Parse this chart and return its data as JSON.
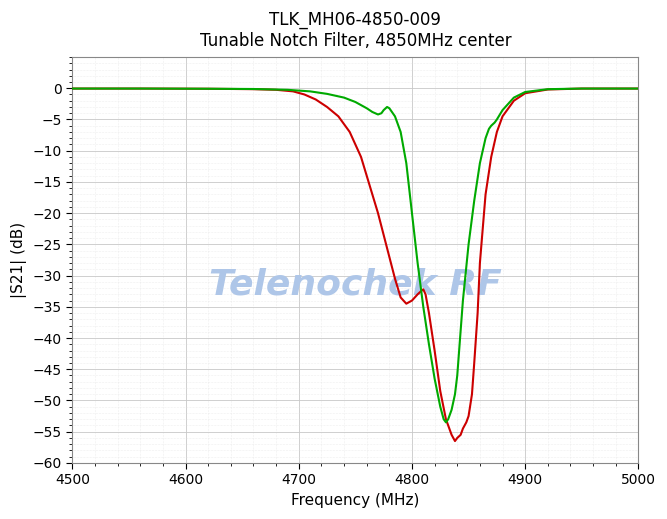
{
  "title_line1": "TLK_MH06-4850-009",
  "title_line2": "Tunable Notch Filter, 4850MHz center",
  "xlabel": "Frequency (MHz)",
  "ylabel": "|S21| (dB)",
  "xlim": [
    4500,
    5000
  ],
  "ylim": [
    -60,
    5
  ],
  "yticks": [
    0,
    -5,
    -10,
    -15,
    -20,
    -25,
    -30,
    -35,
    -40,
    -45,
    -50,
    -55,
    -60
  ],
  "xticks": [
    4500,
    4600,
    4700,
    4800,
    4900,
    5000
  ],
  "watermark": "Telenochek RF",
  "watermark_color": "#aec6e8",
  "bg_color": "#ffffff",
  "grid_color": "#c8c8c8",
  "grid_minor_color": "#e0e0e0",
  "red_color": "#cc0000",
  "green_color": "#00aa00",
  "red_x": [
    4500,
    4560,
    4620,
    4660,
    4680,
    4695,
    4705,
    4715,
    4725,
    4735,
    4745,
    4755,
    4760,
    4765,
    4770,
    4775,
    4780,
    4785,
    4790,
    4795,
    4800,
    4805,
    4808,
    4810,
    4812,
    4815,
    4820,
    4825,
    4830,
    4835,
    4838,
    4840,
    4843,
    4845,
    4848,
    4850,
    4853,
    4855,
    4858,
    4860,
    4865,
    4870,
    4875,
    4880,
    4890,
    4900,
    4920,
    4950,
    5000
  ],
  "red_y": [
    -0.05,
    -0.05,
    -0.08,
    -0.15,
    -0.25,
    -0.5,
    -1.0,
    -1.8,
    -3.0,
    -4.5,
    -7.0,
    -11.0,
    -14.0,
    -17.0,
    -20.0,
    -23.5,
    -27.0,
    -30.5,
    -33.5,
    -34.5,
    -34.0,
    -33.0,
    -32.5,
    -32.2,
    -33.0,
    -36.0,
    -42.0,
    -48.5,
    -53.0,
    -55.5,
    -56.5,
    -56.0,
    -55.5,
    -54.5,
    -53.5,
    -52.5,
    -49.0,
    -44.0,
    -36.0,
    -28.0,
    -17.0,
    -11.0,
    -7.0,
    -4.5,
    -2.0,
    -0.8,
    -0.2,
    -0.05,
    -0.05
  ],
  "green_x": [
    4500,
    4560,
    4620,
    4660,
    4690,
    4710,
    4725,
    4740,
    4750,
    4760,
    4765,
    4770,
    4773,
    4775,
    4778,
    4780,
    4785,
    4790,
    4795,
    4800,
    4805,
    4810,
    4815,
    4820,
    4825,
    4828,
    4830,
    4832,
    4835,
    4838,
    4840,
    4845,
    4850,
    4855,
    4860,
    4865,
    4868,
    4870,
    4873,
    4875,
    4880,
    4885,
    4890,
    4900,
    4920,
    4950,
    5000
  ],
  "green_y": [
    -0.05,
    -0.05,
    -0.08,
    -0.12,
    -0.25,
    -0.5,
    -0.9,
    -1.5,
    -2.2,
    -3.2,
    -3.8,
    -4.2,
    -4.0,
    -3.5,
    -3.0,
    -3.2,
    -4.5,
    -7.0,
    -12.0,
    -20.0,
    -28.0,
    -35.0,
    -41.0,
    -46.5,
    -51.0,
    -53.0,
    -53.5,
    -53.0,
    -51.5,
    -49.0,
    -46.0,
    -34.0,
    -25.0,
    -18.0,
    -12.0,
    -8.0,
    -6.5,
    -6.0,
    -5.5,
    -5.0,
    -3.5,
    -2.5,
    -1.5,
    -0.6,
    -0.15,
    -0.05,
    -0.05
  ]
}
